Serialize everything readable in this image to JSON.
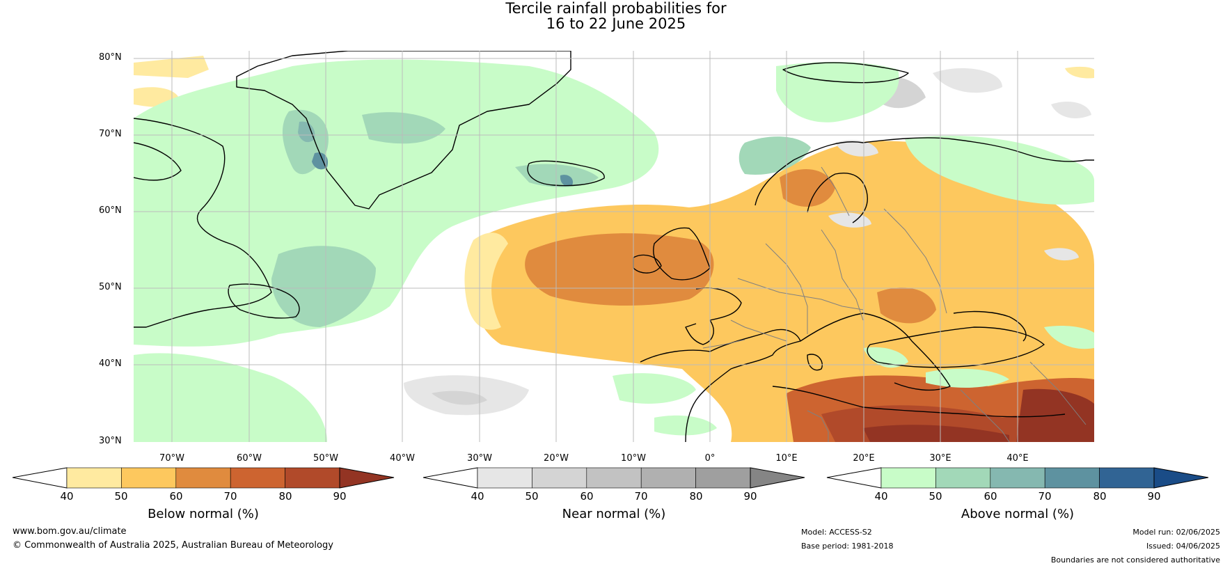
{
  "title": {
    "line1": "Tercile rainfall probabilities for",
    "line2": "16 to 22 June 2025"
  },
  "axes": {
    "lat_labels": [
      "80°N",
      "70°N",
      "60°N",
      "50°N",
      "40°N",
      "30°N"
    ],
    "lon_labels": [
      "70°W",
      "60°W",
      "50°W",
      "40°W",
      "30°W",
      "20°W",
      "10°W",
      "0°",
      "10°E",
      "20°E",
      "30°E",
      "40°E"
    ],
    "lat_range": [
      30,
      80
    ],
    "lon_range": [
      -77,
      48
    ]
  },
  "map": {
    "region": "North Atlantic and Europe",
    "ocean_color": "#ffffff",
    "coastline_color": "#000000",
    "border_color": "#808080",
    "gridlines": true
  },
  "colorbars": [
    {
      "title": "Below normal (%)",
      "ticks": [
        "40",
        "50",
        "60",
        "70",
        "80",
        "90"
      ],
      "colors": [
        "#ffffff",
        "#ffeaa0",
        "#fdc85e",
        "#e08b3e",
        "#cd6430",
        "#b14a2a",
        "#933423"
      ]
    },
    {
      "title": "Near normal (%)",
      "ticks": [
        "40",
        "50",
        "60",
        "70",
        "80",
        "90"
      ],
      "colors": [
        "#ffffff",
        "#e6e6e6",
        "#d4d4d4",
        "#c2c2c2",
        "#b0b0b0",
        "#9f9f9f",
        "#858585"
      ]
    },
    {
      "title": "Above normal (%)",
      "ticks": [
        "40",
        "50",
        "60",
        "70",
        "80",
        "90"
      ],
      "colors": [
        "#ffffff",
        "#c8fcc8",
        "#a2d8b8",
        "#85b8b0",
        "#5e92a0",
        "#316494",
        "#1a4c87"
      ]
    }
  ],
  "footer": {
    "website": "www.bom.gov.au/climate",
    "copyright": "© Commonwealth of Australia 2025, Australian Bureau of Meteorology",
    "model": "Model: ACCESS-S2",
    "base_period": "Base period: 1981-2018",
    "model_run": "Model run: 02/06/2025",
    "issued": "Issued: 04/06/2025",
    "disclaimer": "Boundaries are not considered authoritative"
  }
}
